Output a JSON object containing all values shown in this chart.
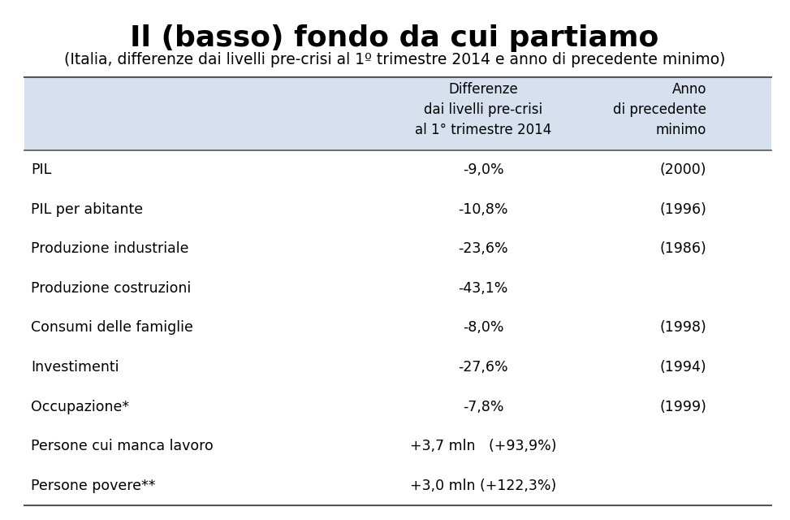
{
  "title": "Il (basso) fondo da cui partiamo",
  "subtitle": "(Italia, differenze dai livelli pre-crisi al 1º trimestre 2014 e anno di precedente minimo)",
  "header_col2": "Differenze\ndai livelli pre-crisi\nal 1° trimestre 2014",
  "header_col3": "Anno\ndi precedente\nminimo",
  "rows": [
    [
      "PIL",
      "-9,0%",
      "(2000)"
    ],
    [
      "PIL per abitante",
      "-10,8%",
      "(1996)"
    ],
    [
      "Produzione industriale",
      "-23,6%",
      "(1986)"
    ],
    [
      "Produzione costruzioni",
      "-43,1%",
      ""
    ],
    [
      "Consumi delle famiglie",
      "-8,0%",
      "(1998)"
    ],
    [
      "Investimenti",
      "-27,6%",
      "(1994)"
    ],
    [
      "Occupazione*",
      "-7,8%",
      "(1999)"
    ],
    [
      "Persone cui manca lavoro",
      "+3,7 mln   (+93,9%)",
      ""
    ],
    [
      "Persone povere**",
      "+3,0 mln (+122,3%)",
      ""
    ]
  ],
  "header_bg_color": "#d6e0ef",
  "bg_color": "#ffffff",
  "line_color": "#555555",
  "title_fontsize": 26,
  "subtitle_fontsize": 13.5,
  "header_fontsize": 12,
  "row_fontsize": 12.5
}
